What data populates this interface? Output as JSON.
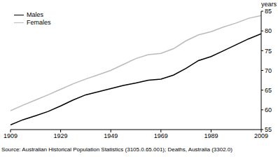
{
  "chart_data": {
    "type": "line",
    "ylabel": "years",
    "source": "Source: Australian Historical Population Statistics (3105.0.65.001); Deaths, Australia (3302.0)",
    "x": [
      1909,
      1914,
      1919,
      1924,
      1929,
      1934,
      1939,
      1944,
      1949,
      1954,
      1959,
      1964,
      1969,
      1974,
      1979,
      1984,
      1989,
      1994,
      1999,
      2004,
      2009
    ],
    "series": [
      {
        "name": "Males",
        "color": "#000000",
        "values": [
          56.2,
          57.5,
          58.5,
          59.6,
          61.0,
          62.5,
          63.8,
          64.6,
          65.4,
          66.2,
          66.8,
          67.5,
          67.8,
          68.8,
          70.5,
          72.5,
          73.5,
          75.0,
          76.5,
          78.0,
          79.3
        ]
      },
      {
        "name": "Females",
        "color": "#bbbbbb",
        "values": [
          59.8,
          61.2,
          62.5,
          63.8,
          65.2,
          66.6,
          67.8,
          68.9,
          70.0,
          71.5,
          73.0,
          74.0,
          74.3,
          75.5,
          77.5,
          79.0,
          79.8,
          81.0,
          82.0,
          83.2,
          83.9
        ]
      }
    ],
    "xlim": [
      1909,
      2009
    ],
    "xticks": [
      1909,
      1929,
      1949,
      1969,
      1989,
      2009
    ],
    "ylim": [
      55,
      85
    ],
    "yticks": [
      55,
      60,
      65,
      70,
      75,
      80,
      85
    ],
    "grid": false,
    "legend": "top-left"
  }
}
